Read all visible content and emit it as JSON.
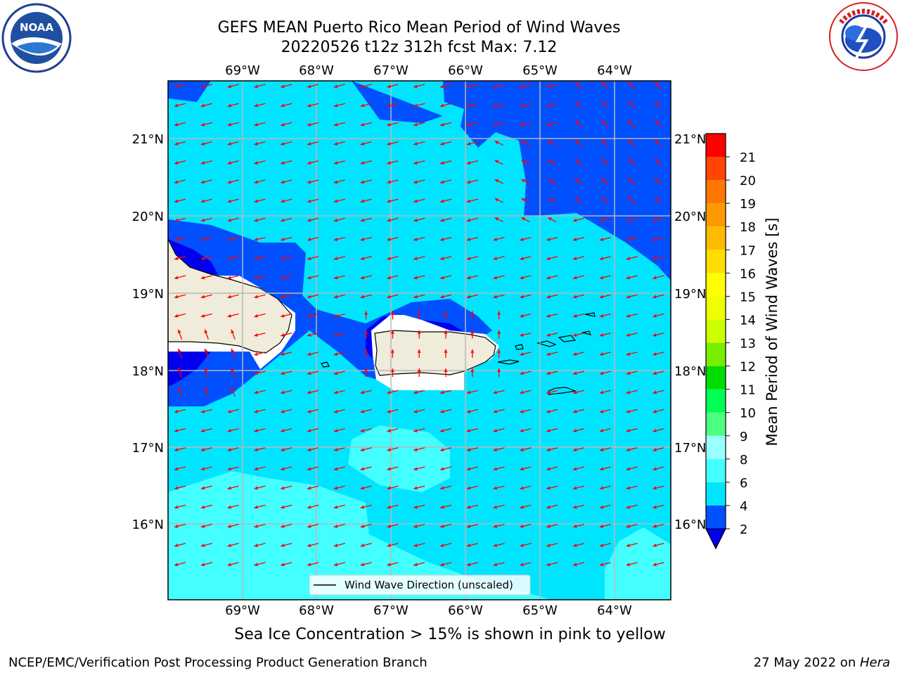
{
  "title_line1": "GEFS MEAN Puerto Rico Mean Period of Wind Waves",
  "title_line2": "20220526 t12z 312h fcst   Max: 7.12",
  "lon_labels": [
    "69°W",
    "68°W",
    "67°W",
    "66°W",
    "65°W",
    "64°W"
  ],
  "lat_labels": [
    "21°N",
    "20°N",
    "19°N",
    "18°N",
    "17°N",
    "16°N"
  ],
  "legend_label": "Wind Wave Direction (unscaled)",
  "colorbar": {
    "label": "Mean Period of Wind Waves [s]",
    "ticks": [
      "2",
      "4",
      "6",
      "8",
      "9",
      "10",
      "11",
      "12",
      "13",
      "14",
      "15",
      "16",
      "17",
      "18",
      "19",
      "20",
      "21"
    ],
    "colors": [
      "#0050ff",
      "#00e5ff",
      "#44ffff",
      "#99ffff",
      "#4dff80",
      "#00ff55",
      "#00dd00",
      "#77ee00",
      "#ccff00",
      "#eeff00",
      "#ffff00",
      "#ffdd00",
      "#ffbb00",
      "#ff9900",
      "#ff7700",
      "#ff4400",
      "#ff0000"
    ],
    "under_color": "#0000ee"
  },
  "map_colors": {
    "band_2_4": "#0050ff",
    "band_4_6": "#00e5ff",
    "band_6_8": "#44ffff",
    "band_under": "#0000ee",
    "land": "#efecdb",
    "arrow": "#ff0000"
  },
  "bottom_note": "Sea Ice Concentration > 15% is shown in pink to yellow",
  "footer_left": "NCEP/EMC/Verification Post Processing Product Generation Branch",
  "footer_right_prefix": "27 May 2022 on ",
  "footer_right_host": "Hera",
  "logos": {
    "left": "noaa-logo",
    "right": "nws-logo"
  }
}
